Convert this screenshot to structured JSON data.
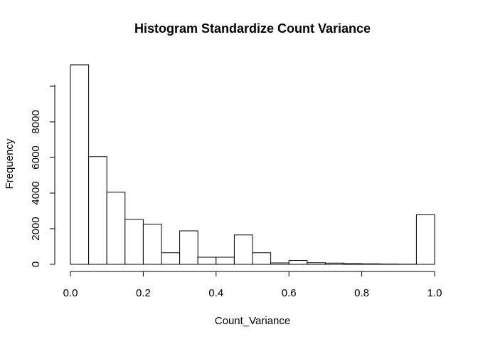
{
  "chart_data": {
    "type": "bar",
    "title": "Histogram Standardize Count Variance",
    "xlabel": "Count_Variance",
    "ylabel": "Frequency",
    "bin_edges": [
      0.0,
      0.05,
      0.1,
      0.15,
      0.2,
      0.25,
      0.3,
      0.35,
      0.4,
      0.45,
      0.5,
      0.55,
      0.6,
      0.65,
      0.7,
      0.75,
      0.8,
      0.85,
      0.9,
      0.95,
      1.0
    ],
    "values": [
      11200,
      6050,
      4050,
      2520,
      2250,
      650,
      1880,
      400,
      400,
      1650,
      650,
      80,
      220,
      90,
      70,
      40,
      30,
      20,
      10,
      2780
    ],
    "xlim": [
      0,
      1
    ],
    "ylim": [
      0,
      11200
    ],
    "x_ticks": [
      0.0,
      0.2,
      0.4,
      0.6,
      0.8,
      1.0
    ],
    "x_tick_labels": [
      "0.0",
      "0.2",
      "0.4",
      "0.6",
      "0.8",
      "1.0"
    ],
    "y_ticks": [
      0,
      2000,
      4000,
      6000,
      8000,
      10000
    ],
    "y_tick_labels": [
      "0",
      "2000",
      "4000",
      "6000",
      "8000",
      ""
    ],
    "grid": false,
    "bar_fill": "#ffffff",
    "bar_stroke": "#000000"
  }
}
